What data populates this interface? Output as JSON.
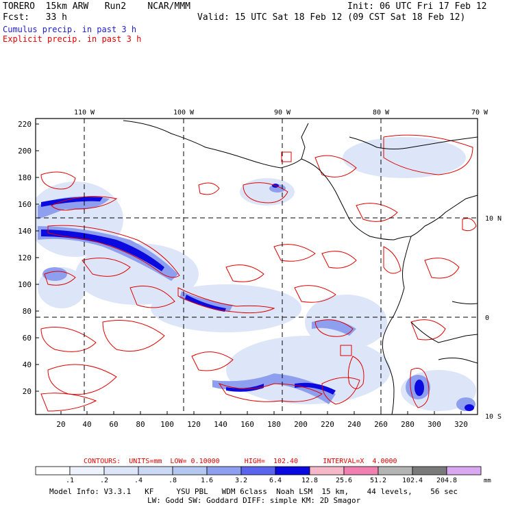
{
  "header": {
    "model": "TORERO",
    "resolution": "15km ARW",
    "run": "Run2",
    "org": "NCAR/MMM",
    "init": "Init: 06 UTC Fri 17 Feb 12",
    "fcst_label": "Fcst:",
    "fcst_value": "33 h",
    "valid": "Valid: 15 UTC Sat 18 Feb 12 (09 CST Sat 18 Feb 12)",
    "field1": "Cumulus precip. in past 3 h",
    "field2": "Explicit precip. in past 3 h"
  },
  "colors": {
    "field1": "#2020d0",
    "field2": "#e00000",
    "contour": "#e00000",
    "coast": "#000000"
  },
  "map": {
    "lon_labels": [
      "110 W",
      "100 W",
      "90 W",
      "80 W",
      "70 W"
    ],
    "lat_labels": [
      "10 N",
      "0",
      "10 S"
    ],
    "y_ticks": [
      "220",
      "200",
      "180",
      "160",
      "140",
      "120",
      "100",
      "80",
      "60",
      "40",
      "20"
    ],
    "x_ticks": [
      "20",
      "40",
      "60",
      "80",
      "100",
      "120",
      "140",
      "160",
      "180",
      "200",
      "220",
      "240",
      "260",
      "280",
      "300",
      "320"
    ]
  },
  "legend": {
    "contours_text": "CONTOURS:  UNITS=mm  LOW= 0.10000      HIGH=  102.40      INTERVAL=X  4.0000",
    "thresholds": [
      ".1",
      ".2",
      ".4",
      ".8",
      "1.6",
      "3.2",
      "6.4",
      "12.8",
      "25.6",
      "51.2",
      "102.4",
      "204.8"
    ],
    "unit": "mm",
    "colors": [
      "#ffffff",
      "#eef2fb",
      "#dde6f8",
      "#cbd9f5",
      "#b3c7f0",
      "#8f9ff0",
      "#5a64ec",
      "#0a0ae0",
      "#f5b8c8",
      "#f080b0",
      "#b4b4b4",
      "#7a7a7a",
      "#d8a8f0"
    ]
  },
  "footer": {
    "line1": "Model Info: V3.3.1   KF     YSU PBL   WDM 6class  Noah LSM  15 km,    44 levels,    56 sec",
    "line2": "LW: Godd SW: Goddard DIFF: simple KM: 2D Smagor"
  }
}
